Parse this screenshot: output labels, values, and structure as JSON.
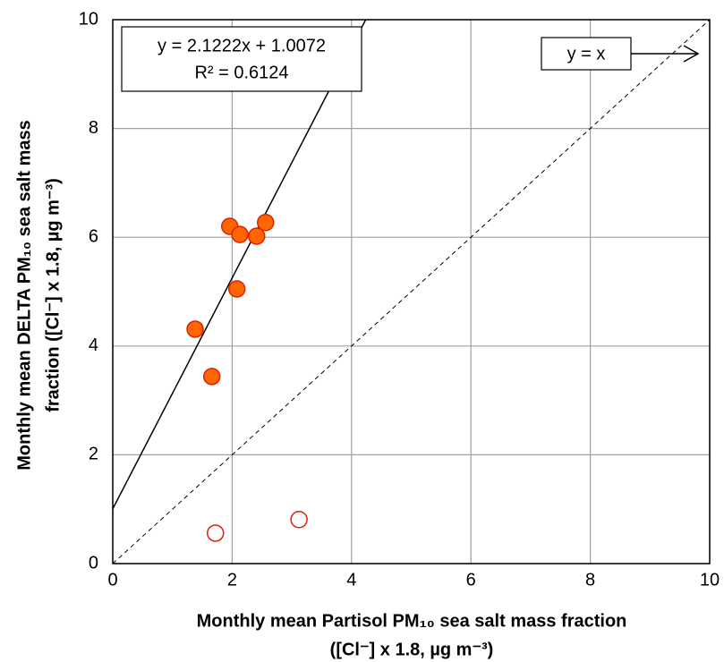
{
  "chart_data": {
    "type": "scatter",
    "xlabel": [
      "Monthly mean Partisol PM₁₀ sea salt mass fraction",
      "([Cl⁻] x 1.8, µg m⁻³)"
    ],
    "ylabel": [
      "Monthly mean DELTA PM₁₀ sea salt mass",
      "fraction ([Cl⁻] x 1.8, µg m⁻³)"
    ],
    "series": [
      {
        "fill": "#ff6600",
        "color": "#e02000",
        "x": [
          1.38,
          1.66,
          1.96,
          2.13,
          2.08,
          2.41,
          2.56
        ],
        "values": [
          4.31,
          3.44,
          6.2,
          6.05,
          5.05,
          6.02,
          6.27
        ]
      },
      {
        "fill": "none",
        "color": "#e02000",
        "x": [
          1.72,
          3.12
        ],
        "values": [
          0.56,
          0.81
        ]
      }
    ],
    "trendline": {
      "slope": 2.1222,
      "intercept": 1.0072,
      "color": "#000000"
    },
    "equation": [
      "y = 2.1222x + 1.0072",
      "R² = 0.6124"
    ],
    "reference_label": "y = x",
    "xlim": [
      0,
      10
    ],
    "ylim": [
      0,
      10
    ],
    "xticks": [
      0,
      2,
      4,
      6,
      8,
      10
    ],
    "yticks": [
      0,
      2,
      4,
      6,
      8,
      10
    ],
    "grid": true
  }
}
